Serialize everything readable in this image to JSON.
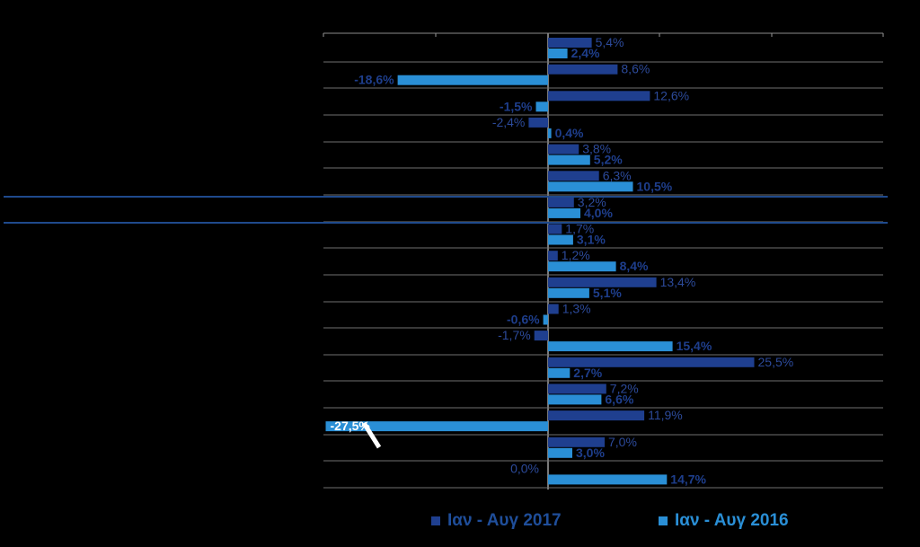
{
  "chart_data": {
    "type": "bar",
    "orientation": "horizontal",
    "xlim": [
      -30,
      30
    ],
    "grid": true,
    "legend_position": "bottom",
    "series": [
      {
        "name": "Ιαν - Αυγ 2017",
        "color": "#1f3f8f",
        "label_color": "#2c4a9a",
        "values": [
          5.4,
          8.6,
          12.6,
          -2.4,
          3.8,
          6.3,
          3.2,
          1.7,
          1.2,
          13.4,
          1.3,
          -1.7,
          25.5,
          7.2,
          11.9,
          7.0,
          0.0
        ],
        "labels": [
          "5,4%",
          "8,6%",
          "12,6%",
          "-2,4%",
          "3,8%",
          "6,3%",
          "3,2%",
          "1,7%",
          "1,2%",
          "13,4%",
          "1,3%",
          "-1,7%",
          "25,5%",
          "7,2%",
          "11,9%",
          "7,0%",
          "0,0%"
        ]
      },
      {
        "name": "Ιαν - Αυγ 2016",
        "color": "#2a8fd6",
        "label_color": "#1e3e8c",
        "values": [
          2.4,
          -18.6,
          -1.5,
          0.4,
          5.2,
          10.5,
          4.0,
          3.1,
          8.4,
          5.1,
          -0.6,
          15.4,
          2.7,
          6.6,
          -27.5,
          3.0,
          14.7
        ],
        "labels": [
          "2,4%",
          "-18,6%",
          "-1,5%",
          "0,4%",
          "5,2%",
          "10,5%",
          "4,0%",
          "3,1%",
          "8,4%",
          "5,1%",
          "-0,6%",
          "15,4%",
          "2,7%",
          "6,6%",
          "-27,5%",
          "3,0%",
          "14,7%"
        ]
      }
    ],
    "legend": [
      {
        "label": "Ιαν - Αυγ 2017",
        "color": "#1f3f8f"
      },
      {
        "label": "Ιαν - Αυγ 2016",
        "color": "#2a8fd6"
      }
    ]
  }
}
